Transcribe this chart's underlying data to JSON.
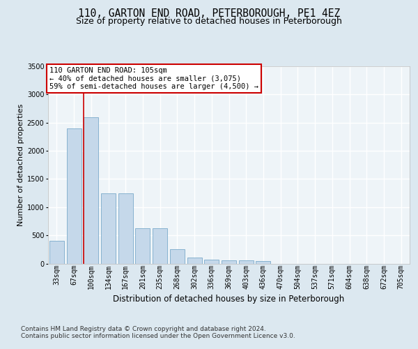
{
  "title_line1": "110, GARTON END ROAD, PETERBOROUGH, PE1 4EZ",
  "title_line2": "Size of property relative to detached houses in Peterborough",
  "xlabel": "Distribution of detached houses by size in Peterborough",
  "ylabel": "Number of detached properties",
  "footer_line1": "Contains HM Land Registry data © Crown copyright and database right 2024.",
  "footer_line2": "Contains public sector information licensed under the Open Government Licence v3.0.",
  "categories": [
    "33sqm",
    "67sqm",
    "100sqm",
    "134sqm",
    "167sqm",
    "201sqm",
    "235sqm",
    "268sqm",
    "302sqm",
    "336sqm",
    "369sqm",
    "403sqm",
    "436sqm",
    "470sqm",
    "504sqm",
    "537sqm",
    "571sqm",
    "604sqm",
    "638sqm",
    "672sqm",
    "705sqm"
  ],
  "values": [
    400,
    2400,
    2600,
    1250,
    1250,
    630,
    630,
    260,
    110,
    70,
    60,
    60,
    40,
    0,
    0,
    0,
    0,
    0,
    0,
    0,
    0
  ],
  "bar_color": "#c5d8ea",
  "bar_edge_color": "#7aaaca",
  "red_line_bin_index": 2,
  "annotation_text_line1": "110 GARTON END ROAD: 105sqm",
  "annotation_text_line2": "← 40% of detached houses are smaller (3,075)",
  "annotation_text_line3": "59% of semi-detached houses are larger (4,500) →",
  "annotation_box_edgecolor": "#cc0000",
  "ylim_max": 3500,
  "yticks": [
    0,
    500,
    1000,
    1500,
    2000,
    2500,
    3000,
    3500
  ],
  "bg_color": "#dce8f0",
  "plot_bg_color": "#eef4f8",
  "grid_color": "#ffffff",
  "title_fontsize": 10.5,
  "subtitle_fontsize": 9,
  "ylabel_fontsize": 8,
  "xlabel_fontsize": 8.5,
  "tick_fontsize": 7,
  "footer_fontsize": 6.5
}
